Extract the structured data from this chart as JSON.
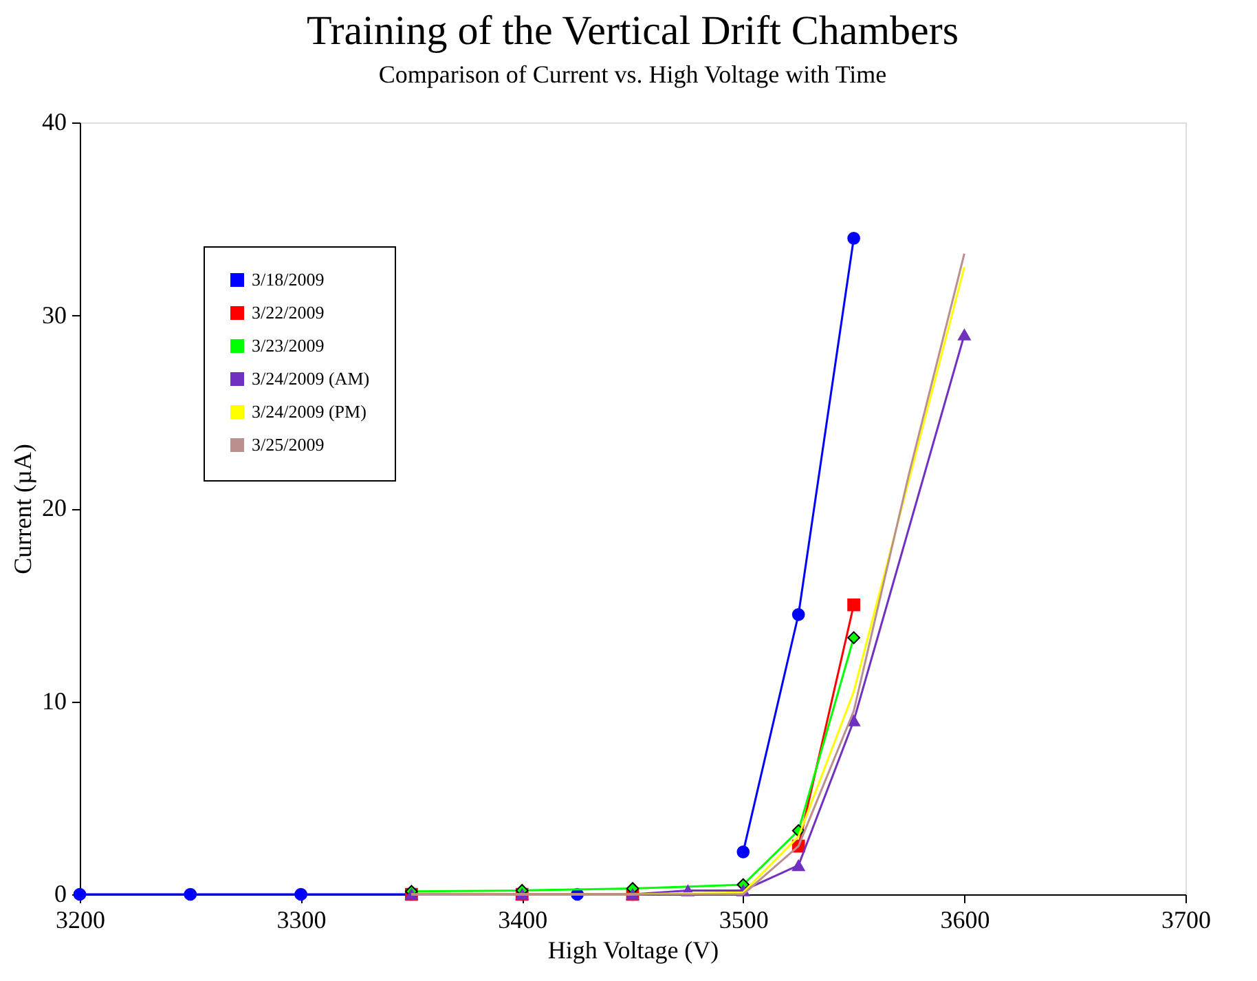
{
  "chart_data": {
    "type": "line",
    "title": "Training of the Vertical Drift Chambers",
    "subtitle": "Comparison of Current vs. High Voltage with Time",
    "xlabel": "High Voltage (V)",
    "ylabel": "Current (µA)",
    "xlim": [
      3200,
      3700
    ],
    "xticks": [
      3200,
      3300,
      3400,
      3500,
      3600,
      3700
    ],
    "ylim": [
      0,
      40
    ],
    "yticks": [
      0,
      10,
      20,
      30,
      40
    ],
    "grid": false,
    "legend": "top left",
    "series": [
      {
        "name": "3/18/2009",
        "color": "#0000ff",
        "marker": "circle",
        "x": [
          3200,
          3250,
          3300,
          3350,
          3400,
          3425,
          3450,
          3475,
          3500,
          3525,
          3550
        ],
        "values": [
          0,
          0,
          0,
          0,
          0,
          0,
          0,
          null,
          2.2,
          14.5,
          34
        ]
      },
      {
        "name": "3/22/2009",
        "color": "#ff0000",
        "marker": "square",
        "x": [
          3350,
          3400,
          3450,
          3500,
          3525,
          3550
        ],
        "values": [
          0,
          0,
          0,
          null,
          2.5,
          15
        ]
      },
      {
        "name": "3/23/2009",
        "color": "#00ff00",
        "marker": "diamond",
        "x": [
          3350,
          3400,
          3450,
          3500,
          3525,
          3550
        ],
        "values": [
          0.15,
          0.2,
          0.3,
          0.5,
          3.3,
          13.3
        ]
      },
      {
        "name": "3/24/2009 (AM)",
        "color": "#7030c0",
        "marker": "triangle",
        "x": [
          3350,
          3400,
          3450,
          3475,
          3500,
          3525,
          3550,
          3600
        ],
        "values": [
          0,
          0,
          0,
          0.2,
          0.2,
          1.5,
          9,
          29
        ]
      },
      {
        "name": "3/24/2009 (PM)",
        "color": "#ffff00",
        "marker": "none",
        "x": [
          3350,
          3400,
          3450,
          3500,
          3525,
          3550,
          3600
        ],
        "values": [
          0,
          0,
          0,
          0.1,
          3,
          10.5,
          32.5
        ]
      },
      {
        "name": "3/25/2009",
        "color": "#bc8f8f",
        "marker": "none",
        "x": [
          3350,
          3400,
          3450,
          3500,
          3525,
          3550,
          3575,
          3600
        ],
        "values": [
          0,
          0,
          0,
          0,
          2.5,
          9.5,
          21.8,
          33.2
        ]
      }
    ]
  }
}
